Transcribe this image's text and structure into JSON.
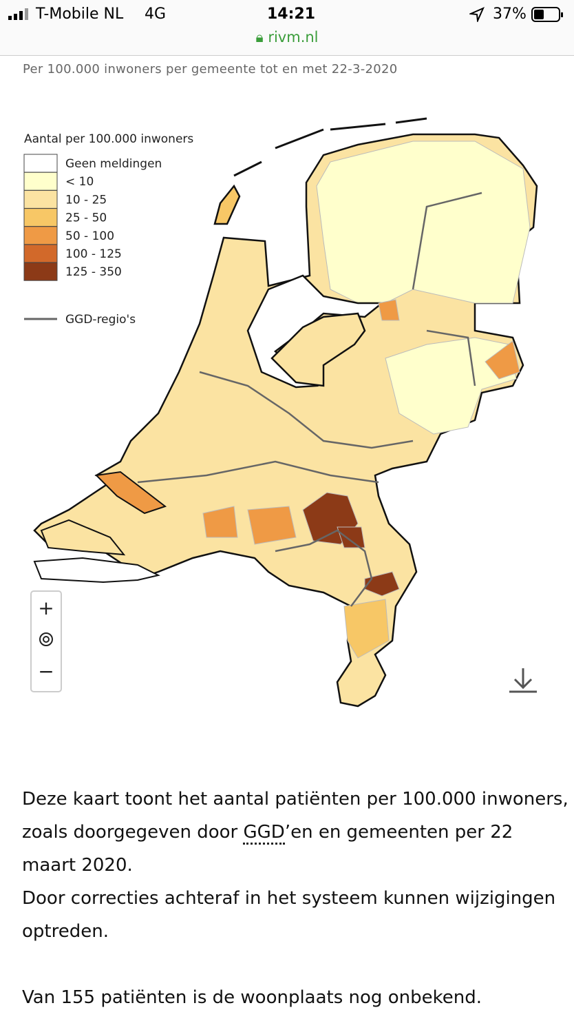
{
  "status_bar": {
    "carrier": "T-Mobile NL",
    "network": "4G",
    "time": "14:21",
    "battery": "37%"
  },
  "address_bar": {
    "url": "rivm.nl"
  },
  "map": {
    "subtitle": "Per 100.000 inwoners per gemeente tot en met 22-3-2020",
    "legend": {
      "title": "Aantal per 100.000 inwoners",
      "items": [
        {
          "label": "Geen meldingen",
          "color": "#ffffff"
        },
        {
          "label": "< 10",
          "color": "#ffffcc"
        },
        {
          "label": "10 - 25",
          "color": "#fbe3a2"
        },
        {
          "label": "25 - 50",
          "color": "#f7c766"
        },
        {
          "label": "50 - 100",
          "color": "#ef9a45"
        },
        {
          "label": "100 - 125",
          "color": "#d2692a"
        },
        {
          "label": "125 - 350",
          "color": "#8c3a17"
        }
      ],
      "boundary_label": "GGD-regio's"
    },
    "zoom_controls": [
      "+",
      "−"
    ]
  },
  "text": {
    "paragraph_1": [
      "Deze kaart toont het aantal patiënten per 100.000 inwoners, zoals doorgegeven door ",
      "GGD",
      "’en en gemeenten per 22 maart 2020."
    ],
    "paragraph_2": "Door correcties achteraf in het systeem kunnen wijzigingen optreden.",
    "paragraph_3": "Van 155 patiënten is de woonplaats nog onbekend."
  }
}
